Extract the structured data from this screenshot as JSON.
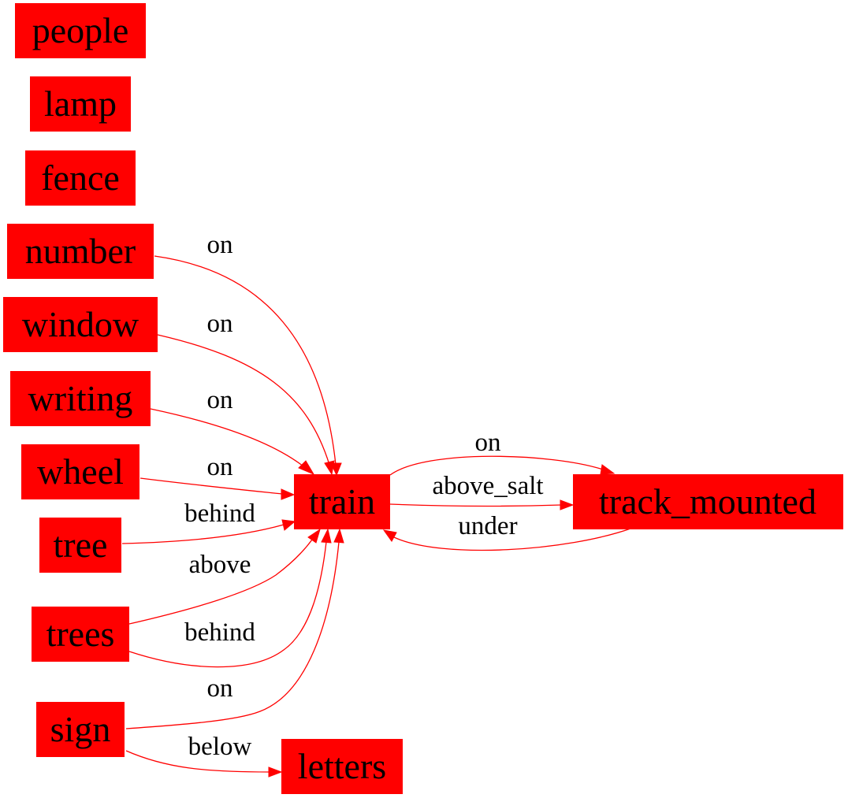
{
  "colors": {
    "node_fill": "#ff0000",
    "edge": "#ff0000",
    "text": "#000000",
    "background": "#ffffff"
  },
  "nodes": {
    "people": "people",
    "lamp": "lamp",
    "fence": "fence",
    "number": "number",
    "window": "window",
    "writing": "writing",
    "wheel": "wheel",
    "tree": "tree",
    "trees": "trees",
    "sign": "sign",
    "train": "train",
    "track_mounted": "track_mounted",
    "letters": "letters"
  },
  "edges": [
    {
      "from": "number",
      "to": "train",
      "label": "on"
    },
    {
      "from": "window",
      "to": "train",
      "label": "on"
    },
    {
      "from": "writing",
      "to": "train",
      "label": "on"
    },
    {
      "from": "wheel",
      "to": "train",
      "label": "on"
    },
    {
      "from": "tree",
      "to": "train",
      "label": "behind"
    },
    {
      "from": "trees",
      "to": "train",
      "label": "above"
    },
    {
      "from": "trees",
      "to": "train",
      "label": "behind"
    },
    {
      "from": "sign",
      "to": "train",
      "label": "on"
    },
    {
      "from": "sign",
      "to": "letters",
      "label": "below"
    },
    {
      "from": "train",
      "to": "track_mounted",
      "label": "on"
    },
    {
      "from": "train",
      "to": "track_mounted",
      "label": "above_salt"
    },
    {
      "from": "track_mounted",
      "to": "train",
      "label": "under"
    }
  ]
}
